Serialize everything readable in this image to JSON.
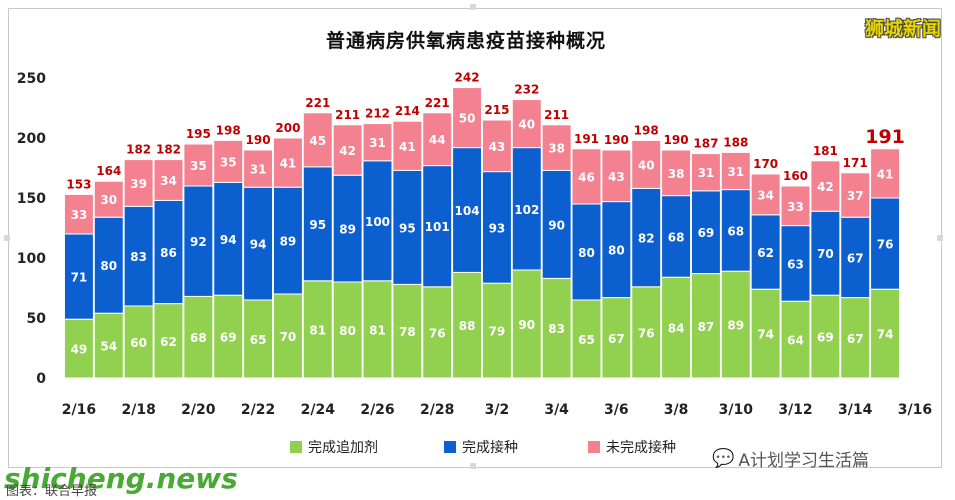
{
  "title": "普通病房供氧病患疫苗接种概况",
  "brand": "狮城新闻",
  "watermark_left": "shicheng.news",
  "watermark_right": "A计划学习生活篇",
  "bottom_caption": "图表：联合早报",
  "colors": {
    "booster": "#92d050",
    "completed": "#0b5fcf",
    "incomplete": "#f4818f",
    "total": "#c00000"
  },
  "chart_data": {
    "type": "bar",
    "stacked": true,
    "title": "普通病房供氧病患疫苗接种概况",
    "categories": [
      "2/16",
      "2/17",
      "2/18",
      "2/19",
      "2/20",
      "2/21",
      "2/22",
      "2/23",
      "2/24",
      "2/25",
      "2/26",
      "2/27",
      "2/28",
      "3/1",
      "3/2",
      "3/3",
      "3/4",
      "3/5",
      "3/6",
      "3/7",
      "3/8",
      "3/9",
      "3/10",
      "3/11",
      "3/12",
      "3/13",
      "3/14",
      "3/15"
    ],
    "x_tick_labels": [
      "2/16",
      "2/18",
      "2/20",
      "2/22",
      "2/24",
      "2/26",
      "2/28",
      "3/2",
      "3/4",
      "3/6",
      "3/8",
      "3/10",
      "3/12",
      "3/14",
      "3/16"
    ],
    "series": [
      {
        "name": "完成追加剂",
        "values": [
          49,
          54,
          60,
          62,
          68,
          69,
          65,
          70,
          81,
          80,
          81,
          78,
          76,
          88,
          79,
          90,
          83,
          65,
          67,
          76,
          84,
          87,
          89,
          74,
          64,
          69,
          67,
          74
        ]
      },
      {
        "name": "完成接种",
        "values": [
          71,
          80,
          83,
          86,
          92,
          94,
          94,
          89,
          95,
          89,
          100,
          95,
          101,
          104,
          93,
          102,
          90,
          80,
          80,
          82,
          68,
          69,
          68,
          62,
          63,
          70,
          67,
          76
        ]
      },
      {
        "name": "未完成接种",
        "values": [
          33,
          30,
          39,
          34,
          35,
          35,
          31,
          41,
          45,
          42,
          31,
          41,
          44,
          50,
          43,
          40,
          38,
          46,
          43,
          40,
          38,
          31,
          31,
          34,
          33,
          42,
          37,
          41
        ]
      }
    ],
    "totals": [
      153,
      164,
      182,
      182,
      195,
      198,
      190,
      200,
      221,
      211,
      212,
      214,
      221,
      242,
      215,
      232,
      211,
      191,
      190,
      198,
      190,
      187,
      188,
      170,
      160,
      181,
      171,
      191
    ],
    "y_ticks": [
      0,
      50,
      100,
      150,
      200,
      250
    ],
    "ylim": [
      0,
      250
    ],
    "legend_position": "bottom",
    "grid": false
  }
}
